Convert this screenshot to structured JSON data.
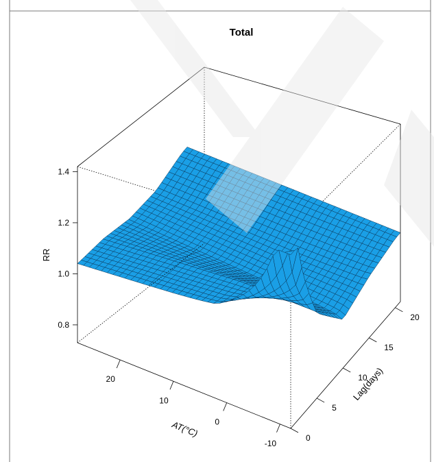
{
  "chart_data": {
    "type": "surface3d",
    "title": "Total",
    "zlabel": "RR",
    "xlabel": "AT(°C)",
    "ylabel": "Lag(days)",
    "z_ticks": [
      "0.8",
      "1.0",
      "1.2",
      "1.4"
    ],
    "x_ticks": [
      "20",
      "10",
      "0",
      "-10"
    ],
    "y_ticks": [
      "0",
      "5",
      "10",
      "15",
      "20"
    ],
    "x_range": [
      -12,
      28
    ],
    "y_range": [
      0,
      21
    ],
    "z_range": [
      0.73,
      1.42
    ],
    "surface_color": "#1a9fe6",
    "mesh_color": "#0a3354",
    "surface_profile": [
      {
        "lag": 0,
        "rr_cold": 1.4,
        "rr_mid": 1.09,
        "rr_warm": 1.04
      },
      {
        "lag": 5,
        "rr_cold": 1.06,
        "rr_mid": 1.07,
        "rr_warm": 1.02
      },
      {
        "lag": 10,
        "rr_cold": 0.92,
        "rr_mid": 0.95,
        "rr_warm": 0.98
      },
      {
        "lag": 15,
        "rr_cold": 0.97,
        "rr_mid": 0.96,
        "rr_warm": 0.97
      },
      {
        "lag": 20,
        "rr_cold": 1.0,
        "rr_mid": 1.0,
        "rr_warm": 1.0
      }
    ]
  }
}
